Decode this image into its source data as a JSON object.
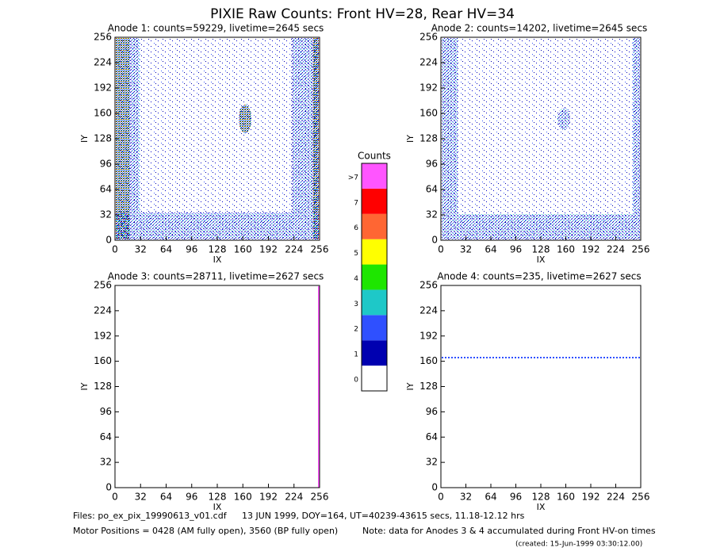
{
  "title": "PIXIE Raw Counts:  Front HV=28, Rear HV=34",
  "chart_data": [
    {
      "type": "image",
      "title": "Anode 1: counts=59229, livetime=2645 secs",
      "x_label": "IX",
      "y_label": "IY",
      "xlim": [
        0,
        256
      ],
      "ylim": [
        0,
        256
      ],
      "xticks": [
        0,
        32,
        64,
        96,
        128,
        160,
        192,
        224,
        256
      ],
      "yticks": [
        0,
        32,
        64,
        96,
        128,
        160,
        192,
        224,
        256
      ]
    },
    {
      "type": "image",
      "title": "Anode 2: counts=14202, livetime=2645 secs",
      "x_label": "IX",
      "y_label": "IY",
      "xlim": [
        0,
        256
      ],
      "ylim": [
        0,
        256
      ],
      "xticks": [
        0,
        32,
        64,
        96,
        128,
        160,
        192,
        224,
        256
      ],
      "yticks": [
        0,
        32,
        64,
        96,
        128,
        160,
        192,
        224,
        256
      ]
    },
    {
      "type": "image",
      "title": "Anode 3: counts=28711, livetime=2627 secs",
      "x_label": "IX",
      "y_label": "IY",
      "xlim": [
        0,
        256
      ],
      "ylim": [
        0,
        256
      ],
      "xticks": [
        0,
        32,
        64,
        96,
        128,
        160,
        192,
        224,
        256
      ],
      "yticks": [
        0,
        32,
        64,
        96,
        128,
        160,
        192,
        224,
        256
      ]
    },
    {
      "type": "image",
      "title": "Anode 4: counts=235, livetime=2627 secs",
      "x_label": "IX",
      "y_label": "IY",
      "xlim": [
        0,
        256
      ],
      "ylim": [
        0,
        256
      ],
      "xticks": [
        0,
        32,
        64,
        96,
        128,
        160,
        192,
        224,
        256
      ],
      "yticks": [
        0,
        32,
        64,
        96,
        128,
        160,
        192,
        224,
        256
      ]
    },
    {
      "type": "colorbar",
      "title": "Counts",
      "categories": [
        "0",
        "1",
        "2",
        "3",
        "4",
        "5",
        "6",
        "7",
        ">7"
      ],
      "colors": [
        "#ffffff",
        "#0000b0",
        "#2f50ff",
        "#1ec8c8",
        "#1ee600",
        "#ffff00",
        "#ff6633",
        "#ff0000",
        "#ff55ff"
      ]
    }
  ],
  "footer": {
    "files": "Files: po_ex_pix_19990613_v01.cdf",
    "times": "13 JUN 1999, DOY=164, UT=40239-43615 secs, 11.18-12.12 hrs",
    "motor": "Motor Positions = 0428 (AM fully open), 3560 (BP fully open)",
    "note": "Note: data for Anodes 3 & 4 accumulated during Front HV-on times",
    "created": "(created: 15-Jun-1999 03:30:12.00)"
  }
}
